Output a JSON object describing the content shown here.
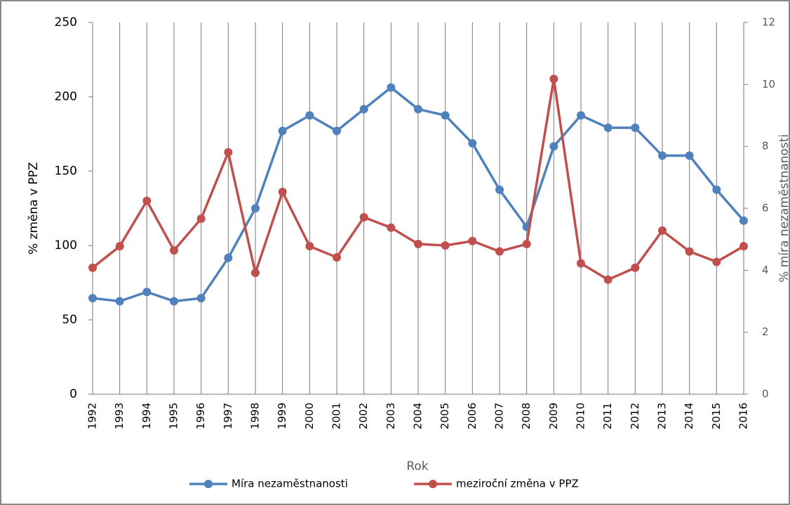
{
  "chart_data": {
    "type": "line",
    "categories": [
      "1992",
      "1993",
      "1994",
      "1995",
      "1996",
      "1997",
      "1998",
      "1999",
      "2000",
      "2001",
      "2002",
      "2003",
      "2004",
      "2005",
      "2006",
      "2007",
      "2008",
      "2009",
      "2010",
      "2011",
      "2012",
      "2013",
      "2014",
      "2015",
      "2016"
    ],
    "series": [
      {
        "name": "Míra nezaměstnanosti",
        "color": "#4f81bd",
        "axis": "y2",
        "values": [
          3.1,
          3.0,
          3.3,
          3.0,
          3.1,
          4.4,
          6.0,
          8.5,
          9.0,
          8.5,
          9.2,
          9.9,
          9.2,
          9.0,
          8.1,
          6.6,
          5.4,
          8.0,
          9.0,
          8.6,
          8.6,
          7.7,
          7.7,
          6.6,
          5.6
        ]
      },
      {
        "name": "meziroční změna v PPZ",
        "color": "#c0504d",
        "values": [
          85,
          99.5,
          130,
          96.7,
          118,
          162.7,
          81.6,
          136,
          99.5,
          92,
          119,
          112,
          101,
          100,
          103,
          96,
          101,
          212,
          88,
          77,
          85,
          110,
          96,
          89,
          99.5
        ]
      }
    ],
    "xlabel": "Rok",
    "ylabel": "% změna v PPZ",
    "y2label": "% míra nezaměstnanosti",
    "ylim": [
      0,
      250
    ],
    "yticks": [
      0,
      50,
      100,
      150,
      200,
      250
    ],
    "y2lim": [
      0,
      12
    ],
    "y2ticks": [
      0,
      2,
      4,
      6,
      8,
      10,
      12
    ],
    "grid": true,
    "legend": "bottom"
  }
}
